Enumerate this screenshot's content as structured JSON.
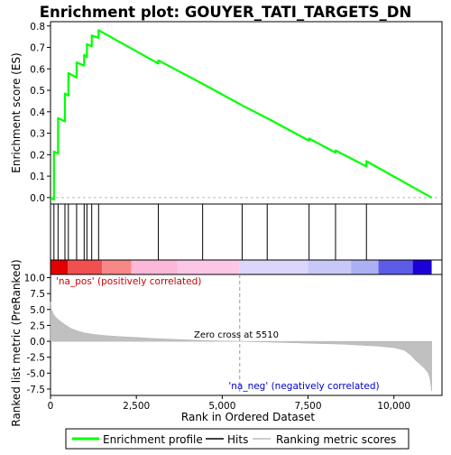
{
  "chart_data": {
    "type": "line",
    "title": "Enrichment plot: GOUYER_TATI_TARGETS_DN",
    "es_panel": {
      "ylabel": "Enrichment score (ES)",
      "yticks": [
        "0.0",
        "0.1",
        "0.2",
        "0.3",
        "0.4",
        "0.5",
        "0.6",
        "0.7",
        "0.8"
      ],
      "ylim": [
        -0.03,
        0.82
      ],
      "series": [
        {
          "name": "Enrichment profile",
          "color": "#00ff00",
          "x": [
            0,
            100,
            100,
            220,
            220,
            420,
            420,
            520,
            520,
            760,
            760,
            980,
            980,
            1060,
            1060,
            1200,
            1200,
            1400,
            1400,
            3140,
            3140,
            4430,
            4430,
            5580,
            5580,
            6310,
            6310,
            7530,
            7530,
            8300,
            8300,
            9200,
            9200,
            11100
          ],
          "y": [
            0.0,
            -0.01,
            0.215,
            0.205,
            0.37,
            0.355,
            0.485,
            0.475,
            0.58,
            0.56,
            0.63,
            0.615,
            0.665,
            0.655,
            0.715,
            0.705,
            0.755,
            0.745,
            0.78,
            0.625,
            0.64,
            0.53,
            0.53,
            0.43,
            0.43,
            0.37,
            0.37,
            0.265,
            0.275,
            0.21,
            0.22,
            0.145,
            0.17,
            0.0
          ]
        }
      ]
    },
    "hits": {
      "name": "Hits",
      "positions": [
        100,
        220,
        420,
        520,
        760,
        980,
        1060,
        1200,
        1400,
        3140,
        4430,
        5580,
        6310,
        7530,
        8300,
        9200
      ]
    },
    "ranked_panel": {
      "ylabel": "Ranked list metric (PreRanked)",
      "yticks": [
        "10.0",
        "7.5",
        "5.0",
        "2.5",
        "0.0",
        "-2.5",
        "-5.0",
        "-7.5"
      ],
      "ylim": [
        -8.5,
        10.5
      ],
      "series_name": "Ranking metric scores",
      "zero_cross_label": "Zero cross at 5510",
      "zero_cross": 5510,
      "pos_label": "'na_pos' (positively correlated)",
      "neg_label": "'na_neg' (negatively correlated)",
      "metric_profile": {
        "rank": [
          0,
          30,
          80,
          150,
          250,
          400,
          600,
          800,
          1000,
          1300,
          1600,
          2000,
          2500,
          3000,
          3500,
          4000,
          4500,
          5000,
          5510,
          6000,
          6500,
          7000,
          7500,
          8000,
          8500,
          9000,
          9500,
          10000,
          10300,
          10500,
          10650,
          10700,
          10900,
          11000,
          11050,
          11100
        ],
        "value": [
          6.2,
          5.0,
          4.3,
          3.8,
          3.3,
          2.7,
          2.0,
          1.6,
          1.3,
          1.05,
          0.9,
          0.75,
          0.6,
          0.45,
          0.33,
          0.22,
          0.12,
          0.05,
          0.0,
          -0.08,
          -0.15,
          -0.22,
          -0.3,
          -0.38,
          -0.45,
          -0.6,
          -0.75,
          -1.0,
          -1.4,
          -2.2,
          -3.1,
          -3.3,
          -4.3,
          -5.0,
          -5.8,
          -7.8
        ]
      }
    },
    "xaxis": {
      "label": "Rank in Ordered Dataset",
      "ticks": [
        0,
        2500,
        5000,
        7500,
        10000
      ],
      "tick_labels": [
        "0",
        "2,500",
        "5,000",
        "7,500",
        "10,000"
      ],
      "xlim": [
        0,
        11400
      ]
    },
    "heatmap_colors": [
      "#e00000",
      "#f05050",
      "#f88888",
      "#fbb8d8",
      "#fcc6e6",
      "#dcd6fc",
      "#c8c8f8",
      "#aab0f2",
      "#5c5ce8",
      "#1c00d6"
    ],
    "heatmap_breaks": [
      0,
      500,
      1500,
      2350,
      3700,
      5510,
      7500,
      8750,
      9550,
      10550,
      11100
    ],
    "legend": {
      "position": "bottom",
      "items": [
        "Enrichment profile",
        "Hits",
        "Ranking metric scores"
      ]
    }
  }
}
